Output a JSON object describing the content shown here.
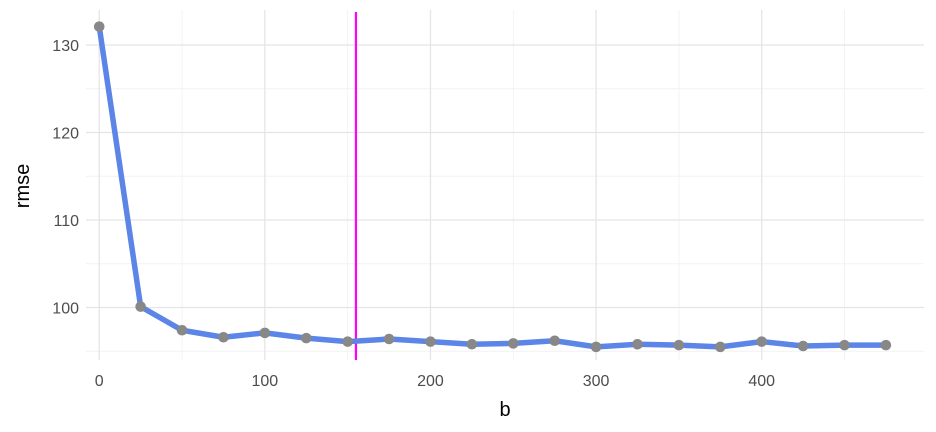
{
  "chart_data": {
    "type": "line",
    "xlabel": "b",
    "ylabel": "rmse",
    "xlim": [
      -8,
      498
    ],
    "ylim": [
      94,
      134
    ],
    "x_ticks": [
      0,
      100,
      200,
      300,
      400
    ],
    "x_tick_labels": [
      "0",
      "100",
      "200",
      "300",
      "400"
    ],
    "y_ticks": [
      100,
      110,
      120,
      130
    ],
    "y_tick_labels": [
      "100",
      "110",
      "120",
      "130"
    ],
    "grid": true,
    "series": [
      {
        "x": [
          0,
          25,
          50,
          75,
          100,
          125,
          150,
          175,
          200,
          225,
          250,
          275,
          300,
          325,
          350,
          375,
          400,
          425,
          450,
          475
        ],
        "y": [
          132.1,
          100.1,
          97.4,
          96.6,
          97.1,
          96.5,
          96.1,
          96.4,
          96.1,
          95.8,
          95.9,
          96.2,
          95.5,
          95.8,
          95.7,
          95.5,
          96.1,
          95.6,
          95.7,
          95.7
        ]
      }
    ],
    "vline": {
      "x": 155,
      "color": "#ff00ff"
    },
    "colors": {
      "line": "#5b85e6",
      "points": "#888888",
      "vline": "#ff00ff",
      "grid": "#e5e5e5"
    }
  }
}
